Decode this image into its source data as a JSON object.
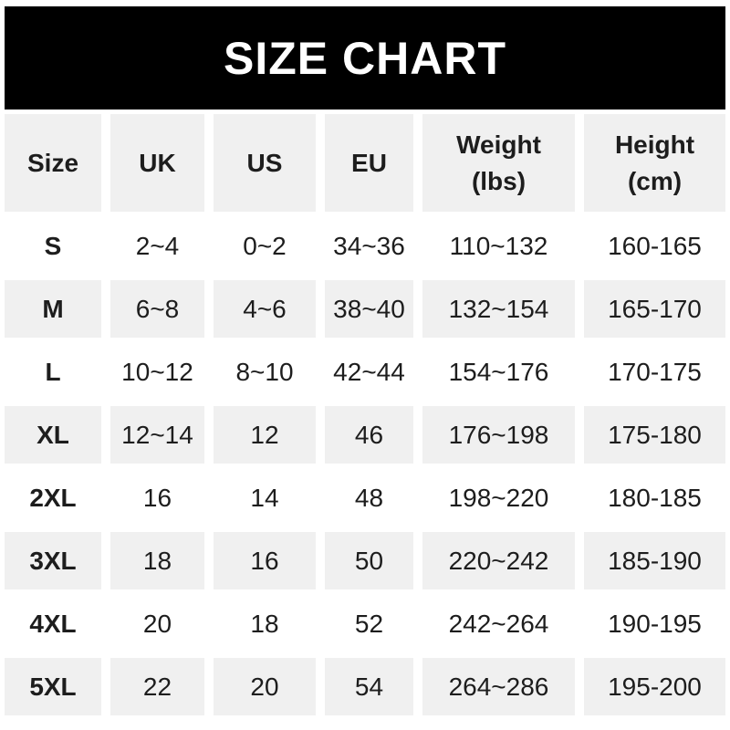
{
  "banner": {
    "title": "SIZE CHART"
  },
  "colors": {
    "banner_bg": "#000000",
    "banner_text": "#ffffff",
    "stripe_bg": "#f0f0f0",
    "text": "#1d1d1d",
    "page_bg": "#ffffff"
  },
  "table": {
    "headers": {
      "size": "Size",
      "uk": "UK",
      "us": "US",
      "eu": "EU",
      "weight_line1": "Weight",
      "weight_line2": "(lbs)",
      "height_line1": "Height",
      "height_line2": "(cm)"
    }
  },
  "chart_data": {
    "type": "table",
    "title": "SIZE CHART",
    "columns": [
      "Size",
      "UK",
      "US",
      "EU",
      "Weight (lbs)",
      "Height (cm)"
    ],
    "rows": [
      [
        "S",
        "2~4",
        "0~2",
        "34~36",
        "110~132",
        "160-165"
      ],
      [
        "M",
        "6~8",
        "4~6",
        "38~40",
        "132~154",
        "165-170"
      ],
      [
        "L",
        "10~12",
        "8~10",
        "42~44",
        "154~176",
        "170-175"
      ],
      [
        "XL",
        "12~14",
        "12",
        "46",
        "176~198",
        "175-180"
      ],
      [
        "2XL",
        "16",
        "14",
        "48",
        "198~220",
        "180-185"
      ],
      [
        "3XL",
        "18",
        "16",
        "50",
        "220~242",
        "185-190"
      ],
      [
        "4XL",
        "20",
        "18",
        "52",
        "242~264",
        "190-195"
      ],
      [
        "5XL",
        "22",
        "20",
        "54",
        "264~286",
        "195-200"
      ]
    ],
    "layout": {
      "striped_rows": "header, M, XL, 3XL, 5XL have light gray background; others white",
      "legend": "none",
      "grid": "white gutters between cells"
    }
  }
}
